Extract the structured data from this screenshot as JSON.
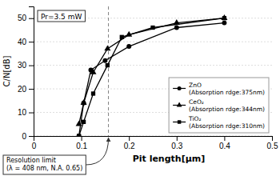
{
  "chart_data": {
    "type": "line",
    "title": "Pr=3.5 mW",
    "x_label": "Pit length[μm]",
    "y_label": "C/N[dB]",
    "xlim": [
      0,
      0.5
    ],
    "ylim": [
      0,
      55
    ],
    "xticks": [
      0,
      0.1,
      0.2,
      0.3,
      0.4,
      0.5
    ],
    "yticks": [
      0,
      10,
      20,
      30,
      40,
      50
    ],
    "grid": "y",
    "legend": "lower right",
    "series": [
      {
        "name": "ZnO\n(Absorption rdge:375nm)",
        "color": "black",
        "marker": "circle",
        "x": [
          0.095,
          0.105,
          0.12,
          0.15,
          0.2,
          0.3,
          0.4
        ],
        "values": [
          0,
          14,
          28,
          32,
          38,
          46,
          48
        ]
      },
      {
        "name": "CeO₂\n(Absorption rdge:344nm)",
        "color": "black",
        "marker": "triangle",
        "x": [
          0.095,
          0.105,
          0.125,
          0.155,
          0.2,
          0.3,
          0.4
        ],
        "values": [
          5,
          14,
          27,
          37,
          43,
          48,
          50
        ]
      },
      {
        "name": "TiO₂\n(Absorption rdge:310nm)",
        "color": "black",
        "marker": "square",
        "x": [
          0.095,
          0.105,
          0.125,
          0.155,
          0.185,
          0.25,
          0.4
        ],
        "values": [
          0,
          6,
          18,
          30,
          42,
          46,
          50
        ]
      }
    ],
    "annotations": [
      {
        "x": 0.157,
        "line_style": "dashed",
        "text": [
          "Resolution limit",
          "(λ = 408 nm, N.A. 0.65)"
        ]
      }
    ]
  }
}
